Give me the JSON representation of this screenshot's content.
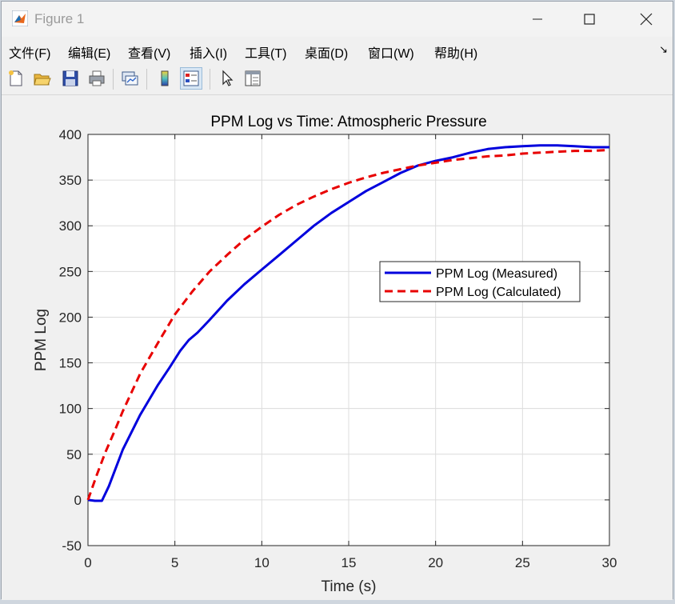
{
  "window": {
    "title": "Figure 1",
    "controls": [
      "minimize",
      "maximize",
      "close"
    ]
  },
  "menu": {
    "items": [
      "文件(F)",
      "编辑(E)",
      "查看(V)",
      "插入(I)",
      "工具(T)",
      "桌面(D)",
      "窗口(W)",
      "帮助(H)"
    ]
  },
  "toolbar": {
    "icons": [
      "new-figure-icon",
      "open-file-icon",
      "save-icon",
      "print-icon",
      "link-plot-icon",
      "colorbar-icon",
      "legend-icon",
      "pointer-icon",
      "property-inspector-icon"
    ]
  },
  "colors": {
    "measured": "#0000dd",
    "calculated": "#e80000",
    "grid": "#dcdcdc"
  },
  "chart_data": {
    "type": "line",
    "title": "PPM Log vs Time: Atmospheric Pressure",
    "xlabel": "Time (s)",
    "ylabel": "PPM Log",
    "xlim": [
      0,
      30
    ],
    "ylim": [
      -50,
      400
    ],
    "xticks": [
      0,
      5,
      10,
      15,
      20,
      25,
      30
    ],
    "yticks": [
      -50,
      0,
      50,
      100,
      150,
      200,
      250,
      300,
      350,
      400
    ],
    "grid": true,
    "legend_position": "center-right",
    "series": [
      {
        "name": "PPM Log (Measured)",
        "style": "solid",
        "x": [
          0,
          0.4,
          0.8,
          1.2,
          2,
          3,
          4,
          4.7,
          5.3,
          5.8,
          6.3,
          7,
          8,
          9,
          10,
          11,
          12,
          13,
          14,
          15,
          16,
          17,
          18,
          19,
          20,
          21,
          22,
          23,
          24,
          25,
          26,
          27,
          28,
          29,
          30
        ],
        "y": [
          0,
          -1,
          -1,
          15,
          55,
          93,
          125,
          145,
          163,
          175,
          183,
          197,
          218,
          236,
          252,
          268,
          284,
          300,
          314,
          326,
          338,
          348,
          358,
          366,
          371,
          375,
          380,
          384,
          386,
          387,
          388,
          388,
          387,
          386,
          386
        ]
      },
      {
        "name": "PPM Log (Calculated)",
        "style": "dashed",
        "x": [
          0,
          0.5,
          1,
          1.5,
          2,
          3,
          4,
          5,
          6,
          7,
          8,
          9,
          10,
          11,
          12,
          13,
          14,
          15,
          16,
          17,
          18,
          19,
          20,
          21,
          22,
          23,
          24,
          25,
          26,
          27,
          28,
          29,
          30
        ],
        "y": [
          0,
          27,
          52,
          74,
          97,
          138,
          171,
          203,
          228,
          250,
          268,
          285,
          299,
          312,
          323,
          332,
          340,
          347,
          353,
          358,
          362,
          366,
          369,
          372,
          374,
          376,
          377,
          379,
          380,
          381,
          382,
          382,
          383
        ]
      }
    ]
  }
}
